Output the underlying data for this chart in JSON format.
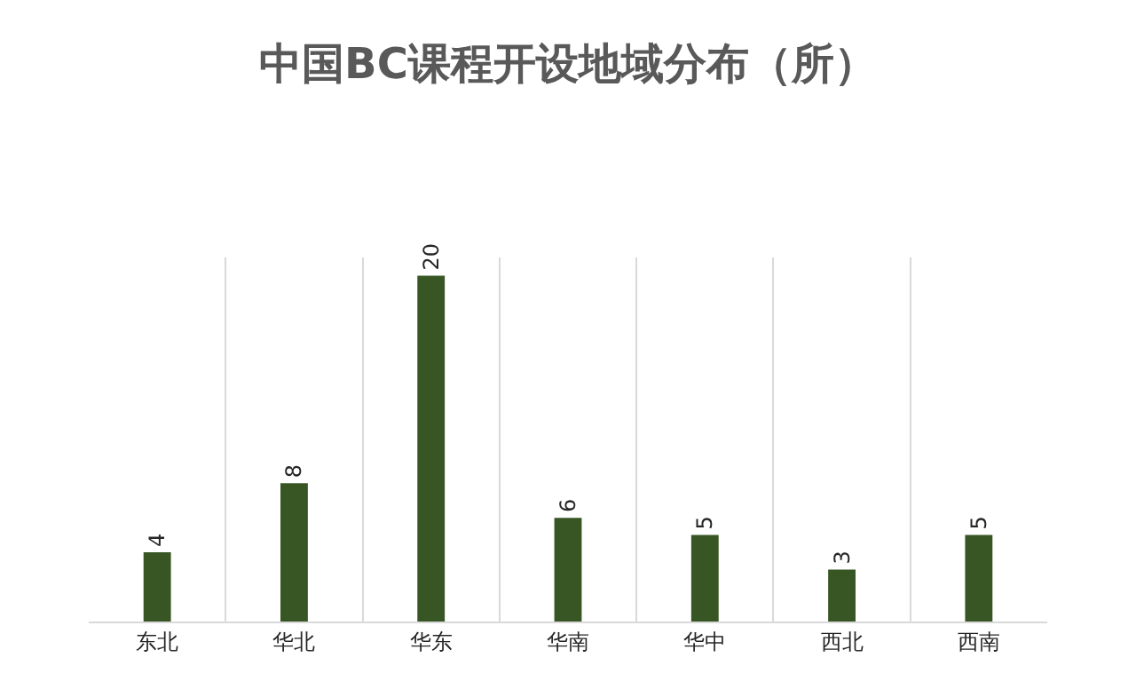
{
  "chart_data": {
    "type": "bar",
    "title": "中国BC课程开设地域分布（所）",
    "categories": [
      "东北",
      "华北",
      "华东",
      "华南",
      "华中",
      "西北",
      "西南"
    ],
    "values": [
      4,
      8,
      20,
      6,
      5,
      3,
      5
    ],
    "color": "#375623",
    "data_labels": true,
    "grid": "x",
    "legend": false,
    "tick_labels": "x"
  }
}
